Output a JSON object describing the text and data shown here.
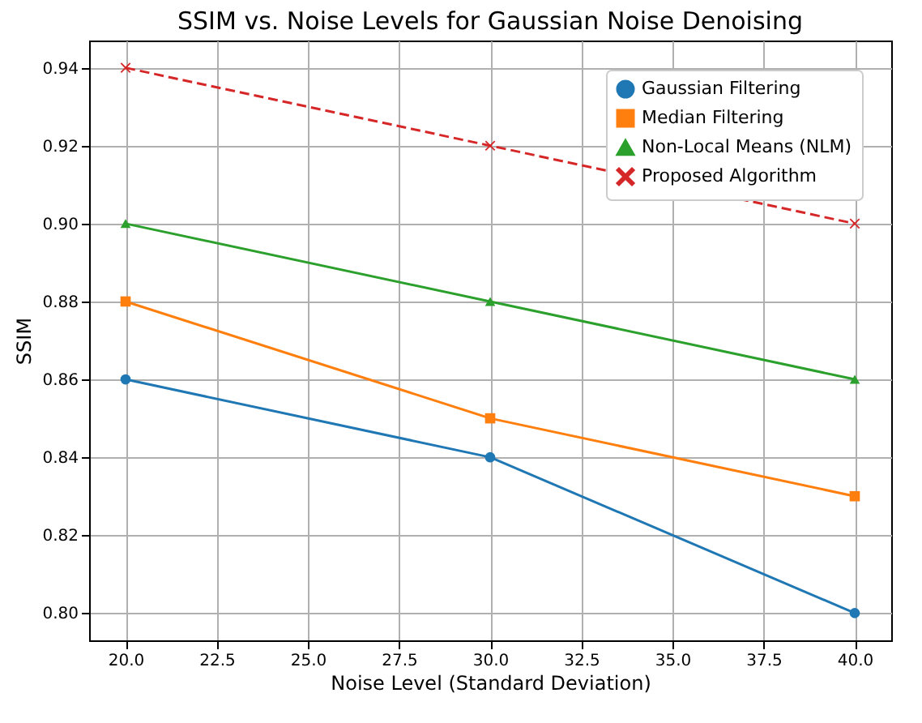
{
  "chart_data": {
    "type": "line",
    "title": "SSIM vs. Noise Levels for Gaussian Noise Denoising",
    "xlabel": "Noise Level (Standard Deviation)",
    "ylabel": "SSIM",
    "x": [
      20,
      30,
      40
    ],
    "series": [
      {
        "name": "Gaussian Filtering",
        "color": "#1f77b4",
        "marker": "circle",
        "line_style": "solid",
        "values": [
          0.86,
          0.84,
          0.8
        ]
      },
      {
        "name": "Median Filtering",
        "color": "#ff7f0e",
        "marker": "square",
        "line_style": "solid",
        "values": [
          0.88,
          0.85,
          0.83
        ]
      },
      {
        "name": "Non-Local Means (NLM)",
        "color": "#2ca02c",
        "marker": "triangle",
        "line_style": "solid",
        "values": [
          0.9,
          0.88,
          0.86
        ]
      },
      {
        "name": "Proposed Algorithm",
        "color": "#d62728",
        "marker": "cross",
        "line_style": "dashed",
        "values": [
          0.94,
          0.92,
          0.9
        ]
      }
    ],
    "xlim": [
      19,
      41
    ],
    "xticks": [
      {
        "value": 20,
        "label": "20.0"
      },
      {
        "value": 22.5,
        "label": "22.5"
      },
      {
        "value": 25,
        "label": "25.0"
      },
      {
        "value": 27.5,
        "label": "27.5"
      },
      {
        "value": 30,
        "label": "30.0"
      },
      {
        "value": 32.5,
        "label": "32.5"
      },
      {
        "value": 35,
        "label": "35.0"
      },
      {
        "value": 37.5,
        "label": "37.5"
      },
      {
        "value": 40,
        "label": "40.0"
      }
    ],
    "ylim": [
      0.793,
      0.947
    ],
    "yticks": [
      {
        "value": 0.8,
        "label": "0.80"
      },
      {
        "value": 0.82,
        "label": "0.82"
      },
      {
        "value": 0.84,
        "label": "0.84"
      },
      {
        "value": 0.86,
        "label": "0.86"
      },
      {
        "value": 0.88,
        "label": "0.88"
      },
      {
        "value": 0.9,
        "label": "0.90"
      },
      {
        "value": 0.92,
        "label": "0.92"
      },
      {
        "value": 0.94,
        "label": "0.94"
      }
    ],
    "grid": true,
    "legend": "top right"
  }
}
